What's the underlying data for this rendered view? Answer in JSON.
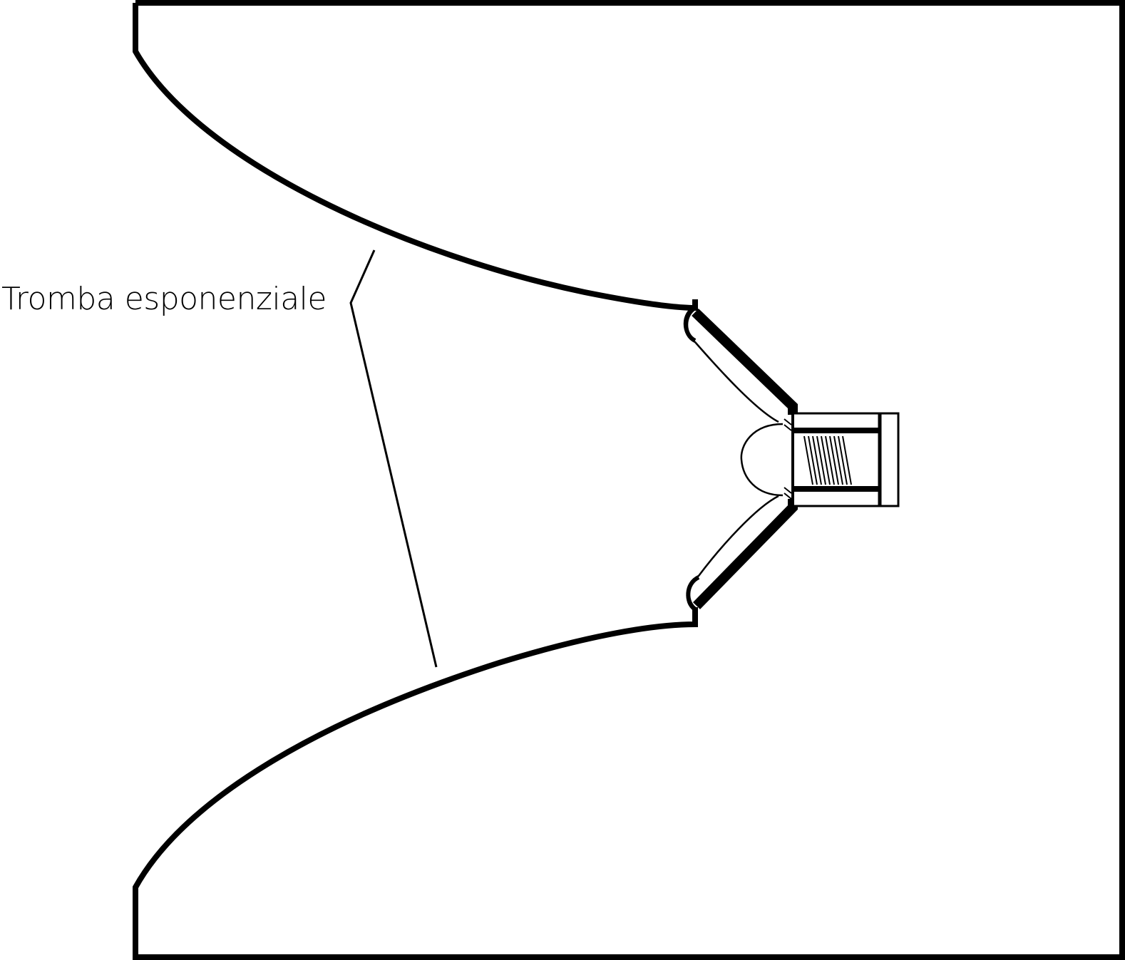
{
  "diagram": {
    "labels": {
      "horn": "Tromba esponenziale"
    },
    "colors": {
      "stroke": "#000000",
      "background": "#ffffff"
    }
  }
}
